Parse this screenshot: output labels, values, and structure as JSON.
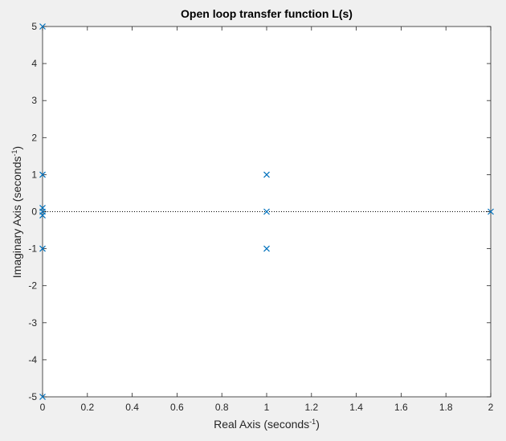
{
  "chart_data": {
    "type": "scatter",
    "title": "Open loop transfer function L(s)",
    "xlabel": {
      "main": "Real Axis (seconds",
      "sup": "-1",
      "end": ")"
    },
    "ylabel": {
      "main": "Imaginary Axis (seconds",
      "sup": "-1",
      "end": ")"
    },
    "xlim": [
      0,
      2
    ],
    "ylim": [
      -5,
      5
    ],
    "xticks": [
      0,
      0.2,
      0.4,
      0.6,
      0.8,
      1,
      1.2,
      1.4,
      1.6,
      1.8,
      2
    ],
    "xtick_labels": [
      "0",
      "0.2",
      "0.4",
      "0.6",
      "0.8",
      "1",
      "1.2",
      "1.4",
      "1.6",
      "1.8",
      "2"
    ],
    "yticks": [
      -5,
      -4,
      -3,
      -2,
      -1,
      0,
      1,
      2,
      3,
      4,
      5
    ],
    "ytick_labels": [
      "-5",
      "-4",
      "-3",
      "-2",
      "-1",
      "0",
      "1",
      "2",
      "3",
      "4",
      "5"
    ],
    "grid": false,
    "marker": "x",
    "marker_color": "#0072BD",
    "zero_line": true,
    "points": [
      {
        "x": 0,
        "y": 5
      },
      {
        "x": 0,
        "y": -5
      },
      {
        "x": 0,
        "y": 1
      },
      {
        "x": 0,
        "y": -1
      },
      {
        "x": 0,
        "y": 0.1
      },
      {
        "x": 0,
        "y": 0
      },
      {
        "x": 0,
        "y": -0.1
      },
      {
        "x": 1,
        "y": 1
      },
      {
        "x": 1,
        "y": 0
      },
      {
        "x": 1,
        "y": -1
      },
      {
        "x": 2,
        "y": 0
      }
    ]
  }
}
